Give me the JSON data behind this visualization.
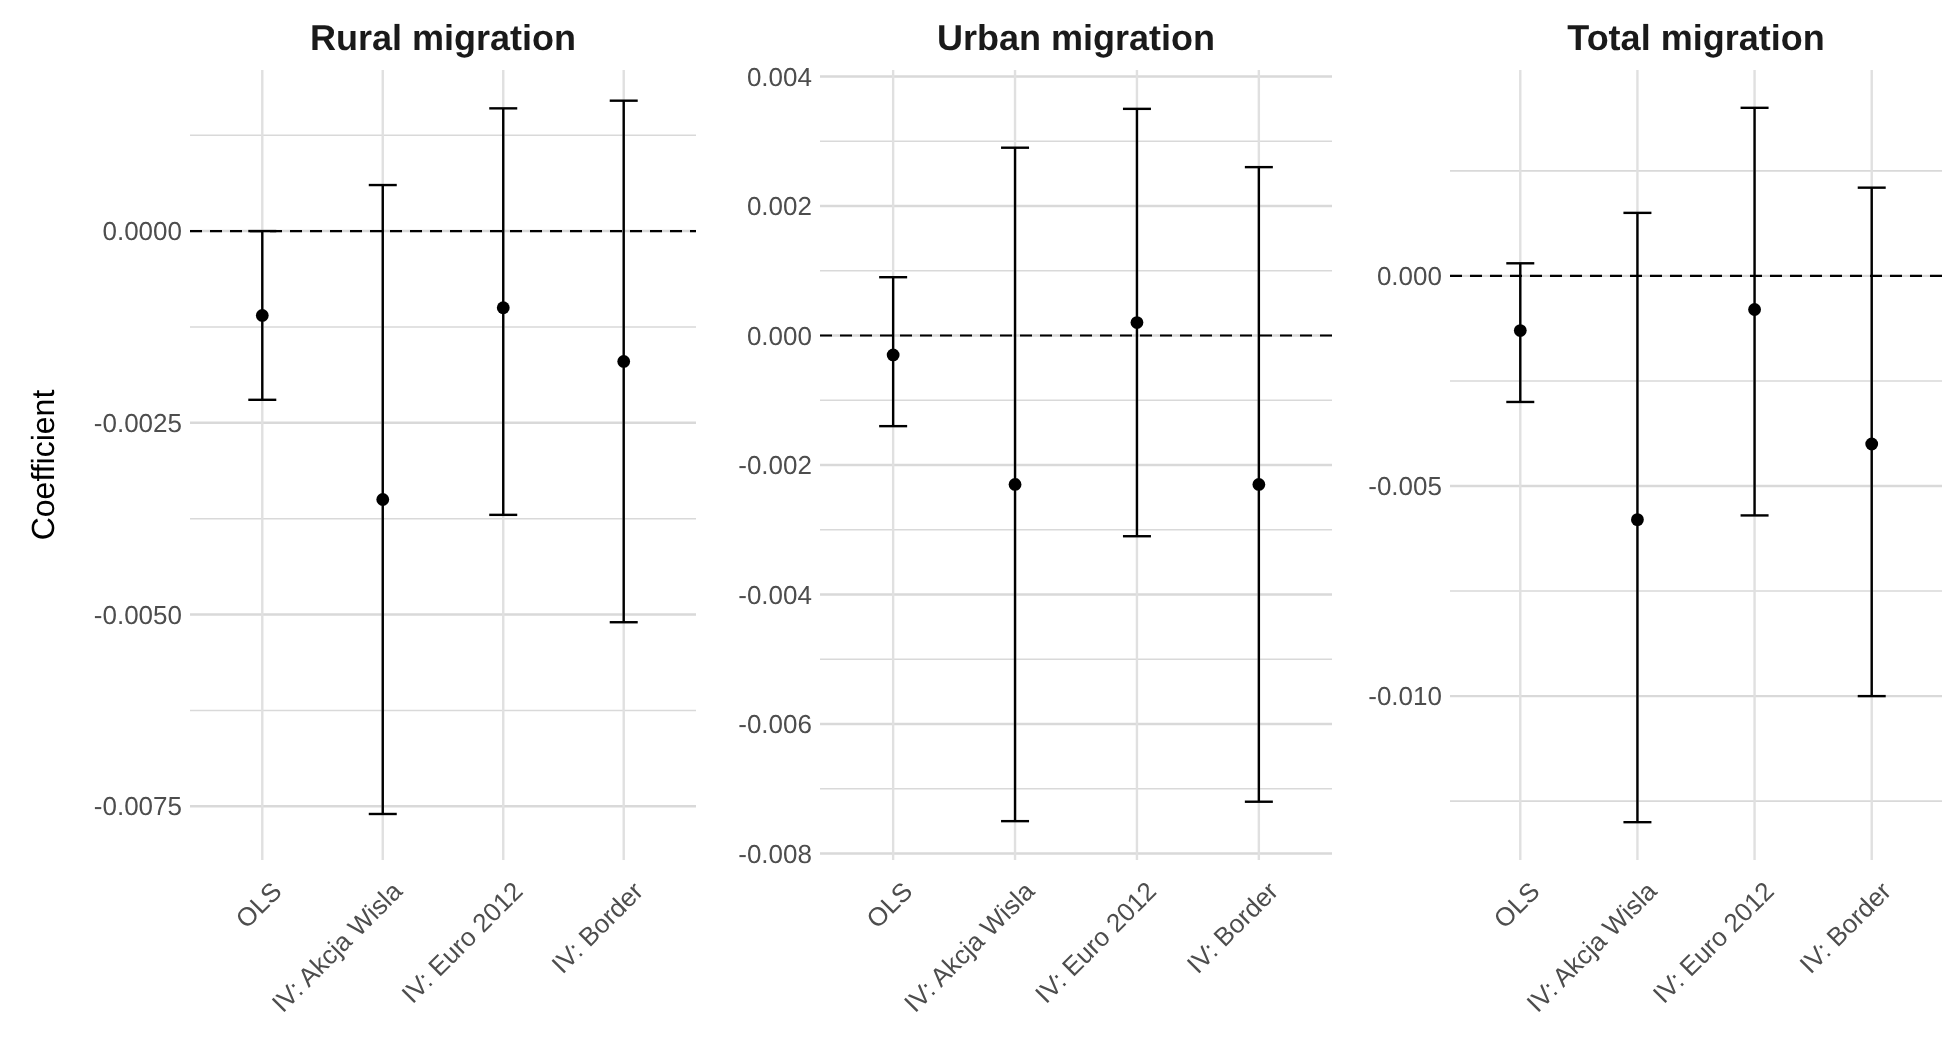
{
  "chart_data": [
    {
      "type": "scatter",
      "title": "Rural migration",
      "ylabel": "Coefficient",
      "categories": [
        "OLS",
        "IV: Akcja Wisla",
        "IV: Euro 2012",
        "IV: Border"
      ],
      "series": [
        {
          "color": "#000000",
          "values": [
            -0.0011,
            -0.0035,
            -0.001,
            -0.0017
          ],
          "errors": [
            [
              -0.0022,
              0.0
            ],
            [
              -0.0076,
              0.0006
            ],
            [
              -0.0037,
              0.0016
            ],
            [
              -0.0051,
              0.0017
            ]
          ]
        }
      ],
      "ylim": [
        -0.0082,
        0.0021
      ],
      "yticks": [
        {
          "value": 0.00125,
          "label": null
        },
        {
          "value": 0,
          "label": "0.0000"
        },
        {
          "value": -0.00125,
          "label": null
        },
        {
          "value": -0.0025,
          "label": "-0.0025"
        },
        {
          "value": -0.00375,
          "label": null
        },
        {
          "value": -0.005,
          "label": "-0.0050"
        },
        {
          "value": -0.00625,
          "label": null
        },
        {
          "value": -0.0075,
          "label": "-0.0075"
        }
      ],
      "ref_lines": [
        {
          "axis": "y",
          "value": 0,
          "line_style": "dashed",
          "color": "#000000"
        }
      ],
      "grid": true,
      "marker": "circle"
    },
    {
      "type": "scatter",
      "title": "Urban migration",
      "categories": [
        "OLS",
        "IV: Akcja Wisla",
        "IV: Euro 2012",
        "IV: Border"
      ],
      "series": [
        {
          "color": "#000000",
          "values": [
            -0.0003,
            -0.0023,
            0.0002,
            -0.0023
          ],
          "errors": [
            [
              -0.0014,
              0.0009
            ],
            [
              -0.0075,
              0.0029
            ],
            [
              -0.0031,
              0.0035
            ],
            [
              -0.0072,
              0.0026
            ]
          ]
        }
      ],
      "ylim": [
        -0.0081,
        0.0041
      ],
      "yticks": [
        {
          "value": 0.004,
          "label": "0.004"
        },
        {
          "value": 0.003,
          "label": null
        },
        {
          "value": 0.002,
          "label": "0.002"
        },
        {
          "value": 0.001,
          "label": null
        },
        {
          "value": 0,
          "label": "0.000"
        },
        {
          "value": -0.001,
          "label": null
        },
        {
          "value": -0.002,
          "label": "-0.002"
        },
        {
          "value": -0.003,
          "label": null
        },
        {
          "value": -0.004,
          "label": "-0.004"
        },
        {
          "value": -0.005,
          "label": null
        },
        {
          "value": -0.006,
          "label": "-0.006"
        },
        {
          "value": -0.007,
          "label": null
        },
        {
          "value": -0.008,
          "label": "-0.008"
        }
      ],
      "ref_lines": [
        {
          "axis": "y",
          "value": 0,
          "line_style": "dashed",
          "color": "#000000"
        }
      ],
      "grid": true,
      "marker": "circle"
    },
    {
      "type": "scatter",
      "title": "Total migration",
      "categories": [
        "OLS",
        "IV: Akcja Wisla",
        "IV: Euro 2012",
        "IV: Border"
      ],
      "series": [
        {
          "color": "#000000",
          "values": [
            -0.0013,
            -0.0058,
            -0.0008,
            -0.004
          ],
          "errors": [
            [
              -0.003,
              0.0003
            ],
            [
              -0.013,
              0.0015
            ],
            [
              -0.0057,
              0.004
            ],
            [
              -0.01,
              0.0021
            ]
          ]
        }
      ],
      "ylim": [
        -0.0139,
        0.0049
      ],
      "yticks": [
        {
          "value": 0.0025,
          "label": null
        },
        {
          "value": 0,
          "label": "0.000"
        },
        {
          "value": -0.0025,
          "label": null
        },
        {
          "value": -0.005,
          "label": "-0.005"
        },
        {
          "value": -0.0075,
          "label": null
        },
        {
          "value": -0.01,
          "label": "-0.010"
        },
        {
          "value": -0.0125,
          "label": null
        }
      ],
      "ref_lines": [
        {
          "axis": "y",
          "value": 0,
          "line_style": "dashed",
          "color": "#000000"
        }
      ],
      "grid": true,
      "marker": "circle"
    }
  ]
}
